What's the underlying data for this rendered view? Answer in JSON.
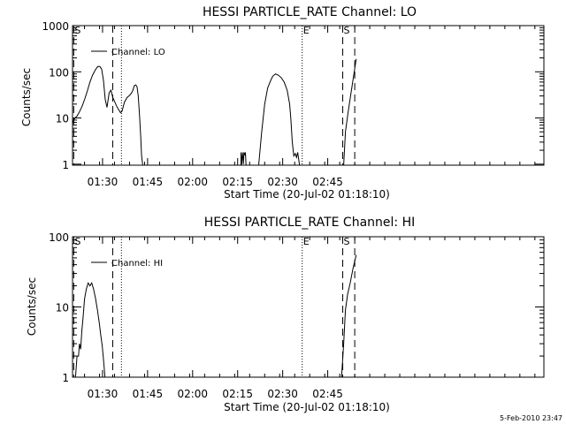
{
  "footer": {
    "timestamp": "5-Feb-2010 23:47"
  },
  "chart_data": [
    {
      "type": "line",
      "title": "HESSI PARTICLE_RATE Channel: LO",
      "xlabel": "Start Time (20-Jul-02 01:18:10)",
      "ylabel": "Counts/sec",
      "yscale": "log",
      "ylim": [
        0.95,
        1000
      ],
      "xlim": [
        21.0,
        178.0
      ],
      "x_unit": "minutes after 01:00 on 20-Jul-02",
      "xticks": [
        {
          "x": 31.0,
          "label": "01:30"
        },
        {
          "x": 46.0,
          "label": "01:45"
        },
        {
          "x": 61.0,
          "label": "02:00"
        },
        {
          "x": 76.0,
          "label": "02:15"
        },
        {
          "x": 91.0,
          "label": "02:30"
        },
        {
          "x": 106.0,
          "label": "02:45"
        }
      ],
      "yticks": [
        {
          "y": 1,
          "label": "1"
        },
        {
          "y": 10,
          "label": "10"
        },
        {
          "y": 100,
          "label": "100"
        },
        {
          "y": 1000,
          "label": "1000"
        }
      ],
      "legend": {
        "position": "top-left",
        "entries": [
          "Channel: LO"
        ]
      },
      "markers": [
        {
          "x": 21.4,
          "label": "S",
          "style": "dashed"
        },
        {
          "x": 34.4,
          "label": "",
          "style": "dashed"
        },
        {
          "x": 37.3,
          "label": "",
          "style": "dotted"
        },
        {
          "x": 97.5,
          "label": "E",
          "style": "dotted"
        },
        {
          "x": 111.0,
          "label": "S",
          "style": "dashed"
        },
        {
          "x": 115.0,
          "label": "",
          "style": "dashed"
        }
      ],
      "series": [
        {
          "name": "Channel: LO",
          "segments": [
            {
              "x": [
                21.0,
                21.6,
                22.5,
                23.3,
                24.2,
                25.1,
                26.0,
                26.8,
                27.7,
                28.6,
                29.4,
                30.1,
                30.7,
                31.3,
                31.9,
                32.5,
                33.2,
                33.8,
                34.4,
                35.1,
                35.7,
                36.4,
                37.0,
                37.5,
                38.3,
                39.2,
                39.8,
                40.4,
                41.0,
                41.6,
                42.1,
                42.5,
                42.9,
                43.3,
                43.7,
                44.0,
                44.4
              ],
              "y": [
                7.5,
                9.5,
                11.0,
                13.5,
                18.0,
                26.0,
                40.0,
                60.0,
                85.0,
                110.0,
                130.0,
                130.0,
                115.0,
                65.0,
                25.0,
                17.0,
                35.0,
                40.0,
                28.0,
                22.0,
                18.0,
                15.0,
                13.0,
                14.0,
                22.0,
                28.0,
                30.0,
                33.0,
                38.0,
                50.0,
                52.0,
                47.0,
                30.0,
                12.0,
                4.0,
                1.5,
                0.95
              ]
            },
            {
              "x": [
                77.1,
                77.1,
                77.3,
                77.6,
                77.9,
                78.1,
                78.4,
                78.6,
                78.8
              ],
              "y": [
                0.95,
                1.8,
                0.95,
                1.8,
                1.0,
                1.8,
                1.6,
                1.8,
                0.95
              ]
            },
            {
              "x": [
                83.0,
                84.0,
                85.0,
                86.0,
                87.0,
                87.7,
                88.6,
                89.5,
                90.5,
                91.5,
                92.5,
                93.3,
                93.7,
                94.2,
                94.7,
                95.2,
                95.6,
                96.0,
                96.6
              ],
              "y": [
                0.95,
                5.0,
                20.0,
                45.0,
                65.0,
                80.0,
                90.0,
                85.0,
                75.0,
                60.0,
                40.0,
                20.0,
                10.0,
                3.0,
                1.5,
                1.7,
                1.4,
                1.8,
                0.95
              ]
            },
            {
              "x": [
                111.3,
                111.9,
                112.7,
                113.6,
                114.6,
                115.5
              ],
              "y": [
                0.95,
                5.0,
                12.0,
                30.0,
                80.0,
                190.0
              ]
            }
          ]
        }
      ]
    },
    {
      "type": "line",
      "title": "HESSI PARTICLE_RATE Channel: HI",
      "xlabel": "Start Time (20-Jul-02 01:18:10)",
      "ylabel": "Counts/sec",
      "yscale": "log",
      "ylim": [
        1,
        100
      ],
      "xlim": [
        21.0,
        178.0
      ],
      "x_unit": "minutes after 01:00 on 20-Jul-02",
      "xticks": [
        {
          "x": 31.0,
          "label": "01:30"
        },
        {
          "x": 46.0,
          "label": "01:45"
        },
        {
          "x": 61.0,
          "label": "02:00"
        },
        {
          "x": 76.0,
          "label": "02:15"
        },
        {
          "x": 91.0,
          "label": "02:30"
        },
        {
          "x": 106.0,
          "label": "02:45"
        }
      ],
      "yticks": [
        {
          "y": 1,
          "label": "1"
        },
        {
          "y": 10,
          "label": "10"
        },
        {
          "y": 100,
          "label": "100"
        }
      ],
      "legend": {
        "position": "top-left",
        "entries": [
          "Channel: HI"
        ]
      },
      "markers": [
        {
          "x": 21.4,
          "label": "S",
          "style": "dashed"
        },
        {
          "x": 34.4,
          "label": "",
          "style": "dashed"
        },
        {
          "x": 37.3,
          "label": "",
          "style": "dotted"
        },
        {
          "x": 97.5,
          "label": "E",
          "style": "dotted"
        },
        {
          "x": 111.0,
          "label": "S",
          "style": "dashed"
        },
        {
          "x": 115.0,
          "label": "",
          "style": "dashed"
        }
      ],
      "series": [
        {
          "name": "Channel: HI",
          "segments": [
            {
              "x": [
                22.0,
                22.5,
                23.0,
                23.3,
                23.7,
                24.1,
                24.5,
                25.0,
                25.6,
                26.2,
                26.8,
                27.4,
                28.0,
                28.7,
                29.3,
                29.9,
                30.4,
                30.9,
                31.3,
                31.8
              ],
              "y": [
                1.0,
                2.0,
                2.0,
                3.0,
                2.5,
                4.5,
                7.0,
                13.0,
                18.0,
                22.0,
                20.0,
                22.0,
                18.0,
                13.0,
                9.0,
                6.0,
                4.0,
                2.8,
                1.8,
                1.0
              ]
            },
            {
              "x": [
                110.6,
                111.3,
                111.9,
                112.6,
                113.5,
                114.4,
                115.5
              ],
              "y": [
                1.0,
                3.0,
                9.0,
                15.0,
                22.0,
                35.0,
                55.0
              ]
            }
          ]
        }
      ]
    }
  ]
}
